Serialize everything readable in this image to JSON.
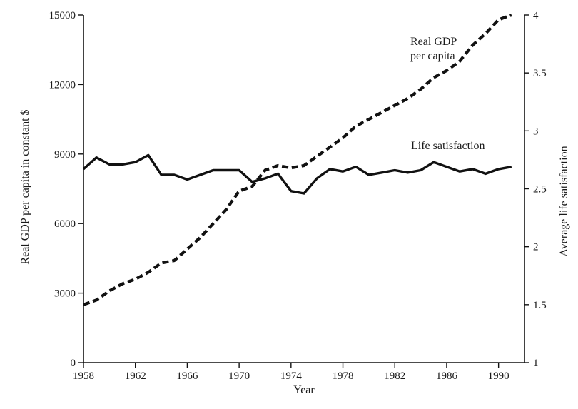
{
  "chart_data": {
    "type": "line",
    "title": "",
    "xlabel": "Year",
    "ylabel_left": "Real GDP per capita in constant $",
    "ylabel_right": "Average life satisfaction",
    "xlim": [
      1958,
      1992
    ],
    "ylim_left": [
      0,
      15000
    ],
    "ylim_right": [
      1,
      4
    ],
    "x_ticks": [
      1958,
      1962,
      1966,
      1970,
      1974,
      1978,
      1982,
      1986,
      1990
    ],
    "y_ticks_left": [
      0,
      3000,
      6000,
      9000,
      12000,
      15000
    ],
    "y_ticks_right": [
      1,
      1.5,
      2,
      2.5,
      3,
      3.5,
      4
    ],
    "y_tick_labels_right": [
      "1",
      "1.5",
      "2",
      "2.5",
      "3",
      "3.5",
      "4"
    ],
    "grid": false,
    "legend": "none (series labeled directly on plot)",
    "series": [
      {
        "name": "Real GDP per capita",
        "label_lines": [
          "Real GDP",
          "per capita"
        ],
        "axis": "left",
        "style": "dashed",
        "x": [
          1958,
          1959,
          1960,
          1961,
          1962,
          1963,
          1964,
          1965,
          1966,
          1967,
          1968,
          1969,
          1970,
          1971,
          1972,
          1973,
          1974,
          1975,
          1976,
          1977,
          1978,
          1979,
          1980,
          1981,
          1982,
          1983,
          1984,
          1985,
          1986,
          1987,
          1988,
          1989,
          1990,
          1991
        ],
        "values": [
          2500,
          2700,
          3100,
          3400,
          3600,
          3900,
          4300,
          4400,
          4900,
          5400,
          6000,
          6600,
          7400,
          7600,
          8300,
          8500,
          8400,
          8500,
          8900,
          9300,
          9700,
          10200,
          10500,
          10800,
          11100,
          11400,
          11800,
          12300,
          12600,
          13000,
          13700,
          14200,
          14800,
          15000
        ]
      },
      {
        "name": "Life satisfaction",
        "label_lines": [
          "Life satisfaction"
        ],
        "axis": "right",
        "style": "solid",
        "x": [
          1958,
          1959,
          1960,
          1961,
          1962,
          1963,
          1964,
          1965,
          1966,
          1967,
          1968,
          1969,
          1970,
          1971,
          1972,
          1973,
          1974,
          1975,
          1976,
          1977,
          1978,
          1979,
          1980,
          1981,
          1982,
          1983,
          1984,
          1985,
          1986,
          1987,
          1988,
          1989,
          1990,
          1991
        ],
        "values": [
          2.67,
          2.77,
          2.71,
          2.71,
          2.73,
          2.79,
          2.62,
          2.62,
          2.58,
          2.62,
          2.66,
          2.66,
          2.66,
          2.56,
          2.59,
          2.63,
          2.48,
          2.46,
          2.59,
          2.67,
          2.65,
          2.69,
          2.62,
          2.64,
          2.66,
          2.64,
          2.66,
          2.73,
          2.69,
          2.65,
          2.67,
          2.63,
          2.67,
          2.69
        ]
      }
    ]
  }
}
